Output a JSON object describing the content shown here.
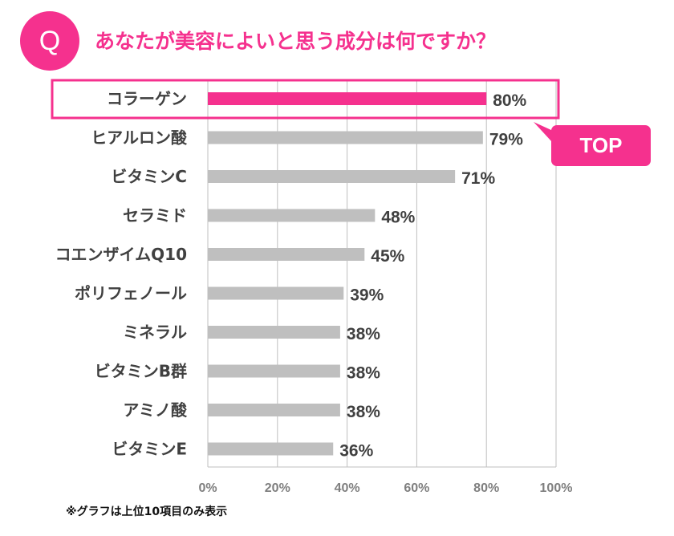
{
  "title": "あなたが美容によいと思う成分は何ですか？",
  "q_label": "Q",
  "callout": "TOP",
  "footnote": "※グラフは上位10項目のみ表示",
  "colors": {
    "accent": "#f5318e",
    "bar": "#bfbfbf",
    "highlight_bar": "#f5318e",
    "grid": "#bfbfbf",
    "text": "#404040"
  },
  "chart_data": {
    "type": "bar",
    "orientation": "horizontal",
    "categories": [
      "コラーゲン",
      "ヒアルロン酸",
      "ビタミンC",
      "セラミド",
      "コエンザイムQ10",
      "ポリフェノール",
      "ミネラル",
      "ビタミンB群",
      "アミノ酸",
      "ビタミンE"
    ],
    "values": [
      80,
      79,
      71,
      48,
      45,
      39,
      38,
      38,
      38,
      36
    ],
    "data_labels": [
      "80%",
      "79%",
      "71%",
      "48%",
      "45%",
      "39%",
      "38%",
      "38%",
      "38%",
      "36%"
    ],
    "xlim": [
      0,
      100
    ],
    "x_ticks": [
      "0%",
      "20%",
      "40%",
      "60%",
      "80%",
      "100%"
    ],
    "grid": true,
    "highlighted": "コラーゲン"
  }
}
